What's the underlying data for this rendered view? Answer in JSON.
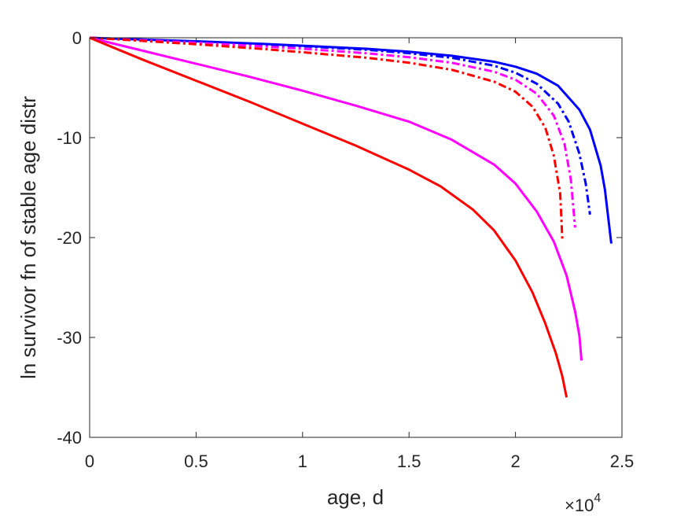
{
  "chart_data": {
    "type": "line",
    "title": "",
    "xlabel": "age, d",
    "ylabel": "ln survivor fn of stable age distr",
    "xlim": [
      0,
      25000
    ],
    "ylim": [
      -40,
      0
    ],
    "x_ticks": [
      0,
      5000,
      10000,
      15000,
      20000,
      25000
    ],
    "x_tick_labels": [
      "0",
      "0.5",
      "1",
      "1.5",
      "2",
      "2.5"
    ],
    "x_exponent_base": "×10",
    "x_exponent_power": "4",
    "y_ticks": [
      -40,
      -30,
      -20,
      -10,
      0
    ],
    "y_tick_labels": [
      "-40",
      "-30",
      "-20",
      "-10",
      "0"
    ],
    "grid": false,
    "legend": "none",
    "series": [
      {
        "color": "#0000ff",
        "dash": "solid",
        "x": [
          0,
          2000,
          5000,
          8000,
          10000,
          13000,
          15000,
          17000,
          19000,
          20000,
          21000,
          22000,
          23000,
          23500,
          24000,
          24200,
          24400,
          24500
        ],
        "y": [
          0,
          -0.15,
          -0.35,
          -0.6,
          -0.8,
          -1.1,
          -1.4,
          -1.8,
          -2.4,
          -2.9,
          -3.6,
          -4.8,
          -7.2,
          -9.2,
          -12.8,
          -15.2,
          -18.8,
          -20.6
        ]
      },
      {
        "color": "#0000ff",
        "dash": "dashdot",
        "x": [
          0,
          2000,
          5000,
          8000,
          10000,
          13000,
          15000,
          17000,
          19000,
          20000,
          21000,
          22000,
          22500,
          23000,
          23300,
          23500
        ],
        "y": [
          0,
          -0.15,
          -0.38,
          -0.65,
          -0.85,
          -1.2,
          -1.55,
          -2.0,
          -2.8,
          -3.5,
          -4.6,
          -6.6,
          -8.4,
          -11.6,
          -14.6,
          -17.7
        ]
      },
      {
        "color": "#ff00ff",
        "dash": "dashdot",
        "x": [
          0,
          2000,
          5000,
          8000,
          10000,
          13000,
          15000,
          17000,
          19000,
          20000,
          21000,
          21800,
          22300,
          22600,
          22800
        ],
        "y": [
          0,
          -0.2,
          -0.5,
          -0.85,
          -1.1,
          -1.55,
          -1.95,
          -2.5,
          -3.4,
          -4.2,
          -5.6,
          -7.8,
          -10.6,
          -14.2,
          -19.0
        ]
      },
      {
        "color": "#ff0000",
        "dash": "dashdot",
        "x": [
          0,
          2000,
          5000,
          8000,
          10000,
          13000,
          15000,
          17000,
          19000,
          20000,
          20800,
          21400,
          21800,
          22100,
          22200
        ],
        "y": [
          0,
          -0.25,
          -0.65,
          -1.1,
          -1.45,
          -2.0,
          -2.5,
          -3.2,
          -4.4,
          -5.4,
          -6.9,
          -9.0,
          -11.8,
          -15.6,
          -20.2
        ]
      },
      {
        "color": "#ff00ff",
        "dash": "solid",
        "x": [
          0,
          2500,
          5000,
          7500,
          10000,
          12500,
          15000,
          17000,
          19000,
          20000,
          21000,
          21800,
          22400,
          22800,
          23000,
          23100
        ],
        "y": [
          0,
          -1.3,
          -2.6,
          -3.9,
          -5.3,
          -6.8,
          -8.4,
          -10.2,
          -12.7,
          -14.6,
          -17.4,
          -20.4,
          -23.8,
          -27.4,
          -29.8,
          -32.3
        ]
      },
      {
        "color": "#ff0000",
        "dash": "solid",
        "x": [
          0,
          2500,
          5000,
          7500,
          10000,
          12500,
          15000,
          16500,
          18000,
          19000,
          20000,
          20800,
          21400,
          21900,
          22200,
          22400
        ],
        "y": [
          0,
          -2.2,
          -4.3,
          -6.4,
          -8.6,
          -10.8,
          -13.2,
          -14.9,
          -17.2,
          -19.3,
          -22.3,
          -25.5,
          -28.6,
          -31.6,
          -33.9,
          -36.0
        ]
      }
    ]
  }
}
